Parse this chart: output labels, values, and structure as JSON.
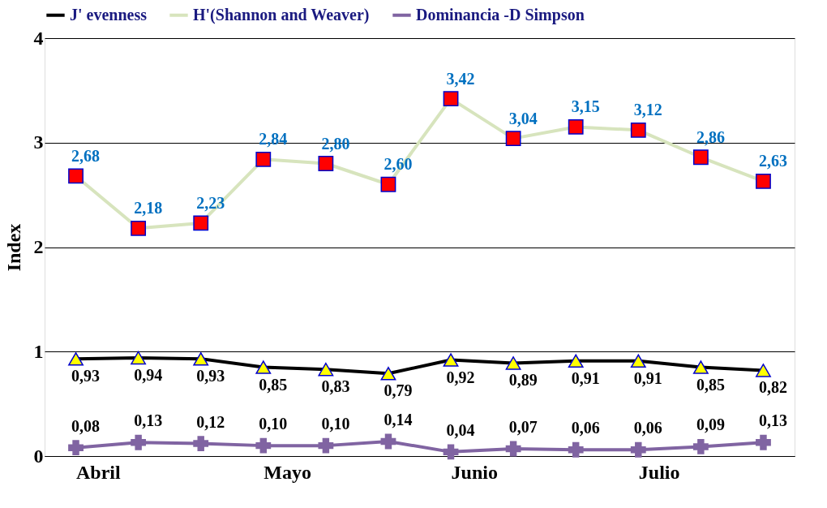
{
  "chart_data": {
    "type": "line",
    "ylabel": "Index",
    "categories": [
      "Abril",
      null,
      null,
      "Mayo",
      null,
      null,
      "Junio",
      null,
      null,
      "Julio",
      null,
      null
    ],
    "series": [
      {
        "name": "J' evenness",
        "color": "#000000",
        "marker": "triangle",
        "values": [
          0.93,
          0.94,
          0.93,
          0.85,
          0.83,
          0.79,
          0.92,
          0.89,
          0.91,
          0.91,
          0.85,
          0.82
        ],
        "value_labels": [
          "0,93",
          "0,94",
          "0,93",
          "0,85",
          "0,83",
          "0,79",
          "0,92",
          "0,89",
          "0,91",
          "0,91",
          "0,85",
          "0,82"
        ]
      },
      {
        "name": "H'(Shannon and Weaver)",
        "color": "#d7e4bd",
        "marker": "square",
        "values": [
          2.68,
          2.18,
          2.23,
          2.84,
          2.8,
          2.6,
          3.42,
          3.04,
          3.15,
          3.12,
          2.86,
          2.63
        ],
        "value_labels": [
          "2,68",
          "2,18",
          "2,23",
          "2,84",
          "2,80",
          "2,60",
          "3,42",
          "3,04",
          "3,15",
          "3,12",
          "2,86",
          "2,63"
        ]
      },
      {
        "name": "Dominancia -D Simpson",
        "color": "#8064a2",
        "marker": "cross",
        "values": [
          0.08,
          0.13,
          0.12,
          0.1,
          0.1,
          0.14,
          0.04,
          0.07,
          0.06,
          0.06,
          0.09,
          0.13
        ],
        "value_labels": [
          "0,08",
          "0,13",
          "0,12",
          "0,10",
          "0,10",
          "0,14",
          "0,04",
          "0,07",
          "0,06",
          "0,06",
          "0,09",
          "0,13"
        ]
      }
    ],
    "ylim": [
      0,
      4
    ],
    "yticks": [
      0,
      1,
      2,
      3,
      4
    ],
    "grid": "y",
    "legend": "top"
  }
}
